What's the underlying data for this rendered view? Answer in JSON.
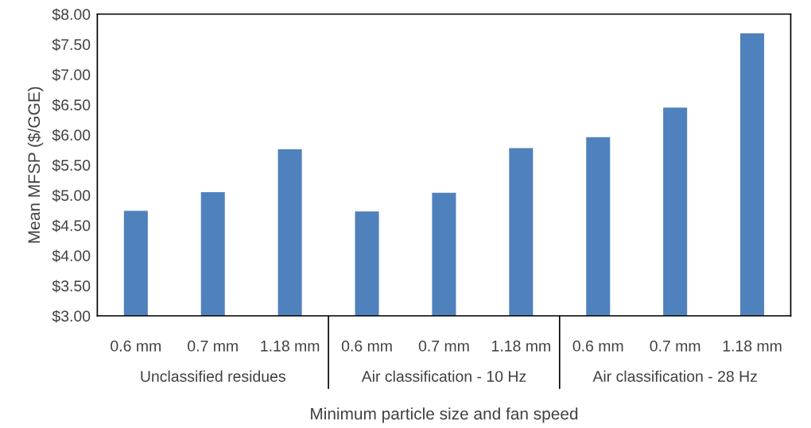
{
  "chart_data": {
    "type": "bar",
    "categories": [
      "0.6 mm",
      "0.7 mm",
      "1.18 mm",
      "0.6 mm",
      "0.7 mm",
      "1.18 mm",
      "0.6 mm",
      "0.7 mm",
      "1.18 mm"
    ],
    "values": [
      4.74,
      5.05,
      5.76,
      4.73,
      5.04,
      5.78,
      5.96,
      6.45,
      7.68
    ],
    "color": "#4f81bd",
    "xlabel": "Minimum particle size and fan speed",
    "ylabel": "Mean MFSP ($/GGE)",
    "ylim": [
      3,
      8
    ],
    "yticks": [
      {
        "value": 3,
        "label": "$3.00"
      },
      {
        "value": 3.5,
        "label": "$3.50"
      },
      {
        "value": 4,
        "label": "$4.00"
      },
      {
        "value": 4.5,
        "label": "$4.50"
      },
      {
        "value": 5,
        "label": "$5.00"
      },
      {
        "value": 5.5,
        "label": "$5.50"
      },
      {
        "value": 6,
        "label": "$6.00"
      },
      {
        "value": 6.5,
        "label": "$6.50"
      },
      {
        "value": 7,
        "label": "$7.00"
      },
      {
        "value": 7.5,
        "label": "$7.50"
      },
      {
        "value": 8,
        "label": "$8.00"
      }
    ],
    "annotations": [
      "Unclassified residues",
      "Air classification - 10 Hz",
      "Air classification - 28 Hz"
    ],
    "grid": false,
    "legend": false
  }
}
